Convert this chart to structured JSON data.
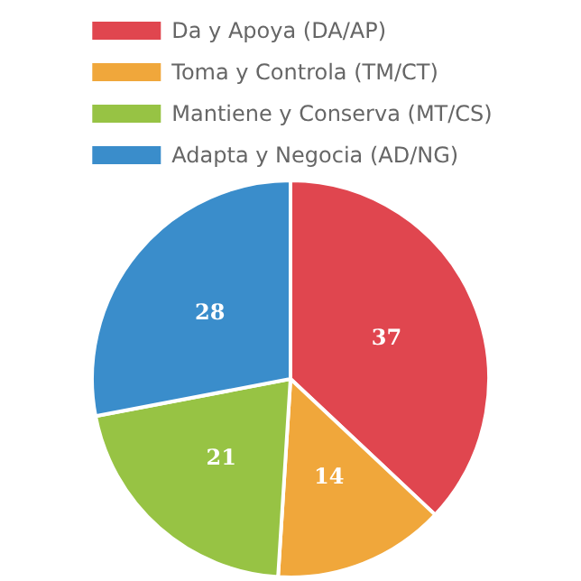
{
  "chart_data": {
    "type": "pie",
    "categories": [
      "Da y Apoya (DA/AP)",
      "Toma y Controla (TM/CT)",
      "Mantiene y Conserva (MT/CS)",
      "Adapta y Negocia (AD/NG)"
    ],
    "values": [
      37,
      14,
      21,
      28
    ],
    "colors": [
      "#e0464f",
      "#f0a73b",
      "#97c344",
      "#3a8dcb"
    ],
    "data_labels": true,
    "legend": "top"
  }
}
